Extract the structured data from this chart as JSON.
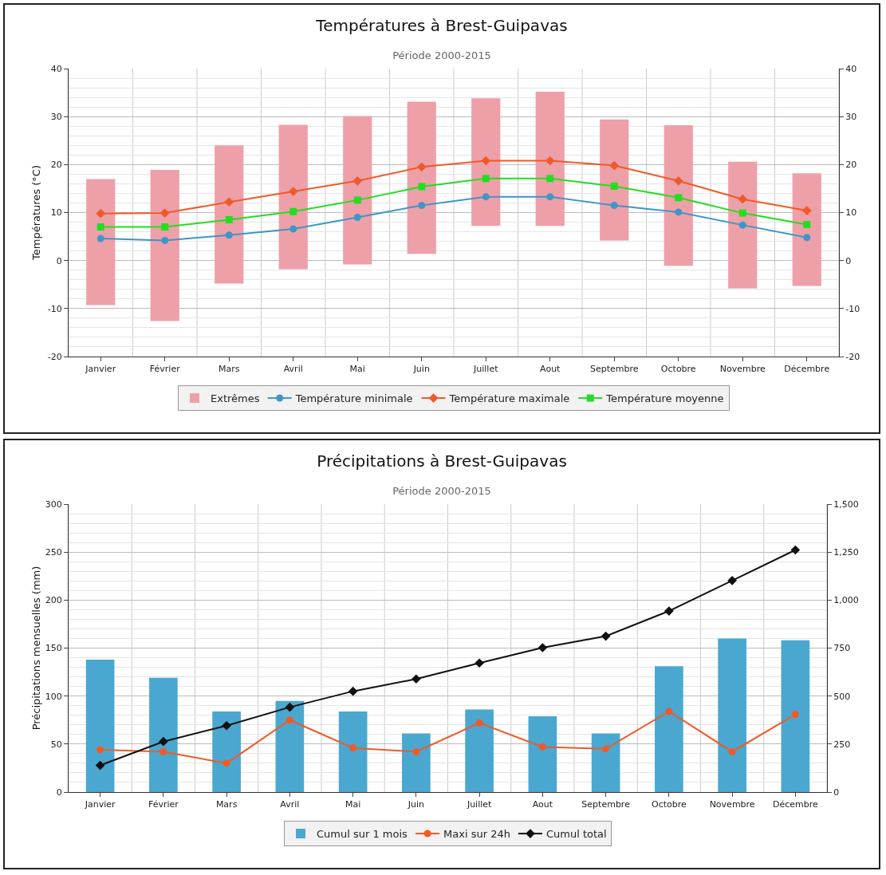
{
  "chart_data": [
    {
      "type": "bar",
      "title": "Températures à Brest-Guipavas",
      "subtitle": "Période 2000-2015",
      "ylabel": "Températures (°C)",
      "categories": [
        "Janvier",
        "Février",
        "Mars",
        "Avril",
        "Mai",
        "Juin",
        "Juillet",
        "Aout",
        "Septembre",
        "Octobre",
        "Novembre",
        "Décembre"
      ],
      "series": [
        {
          "name": "Extrêmes",
          "color": "#eea0a8",
          "values": [
            26.3,
            31.5,
            28.8,
            30.1,
            30.9,
            31.7,
            26.6,
            28.0,
            25.2,
            29.3,
            26.4,
            23.5
          ],
          "base": [
            -9.3,
            -12.6,
            -4.8,
            -1.8,
            -0.8,
            1.4,
            7.2,
            7.2,
            4.2,
            -1.1,
            -5.8,
            -5.3
          ]
        },
        {
          "name": "Température minimale",
          "type": "line",
          "color": "#3d96c8",
          "marker": "circle",
          "values": [
            4.6,
            4.2,
            5.3,
            6.6,
            9.0,
            11.5,
            13.3,
            13.3,
            11.5,
            10.1,
            7.4,
            4.8
          ]
        },
        {
          "name": "Température maximale",
          "type": "line",
          "color": "#f05a28",
          "marker": "diamond",
          "values": [
            9.8,
            9.9,
            12.2,
            14.4,
            16.6,
            19.5,
            20.8,
            20.8,
            19.8,
            16.6,
            12.8,
            10.4
          ]
        },
        {
          "name": "Température moyenne",
          "type": "line",
          "color": "#22dd22",
          "marker": "square",
          "values": [
            7.0,
            7.0,
            8.5,
            10.2,
            12.6,
            15.4,
            17.1,
            17.1,
            15.5,
            13.1,
            9.9,
            7.5
          ]
        }
      ],
      "ylim": [
        -20,
        40
      ],
      "yticks": [
        -20,
        -10,
        0,
        10,
        20,
        30,
        40
      ],
      "y2lim": [
        -20,
        40
      ],
      "y2ticks": [
        -20,
        -10,
        0,
        10,
        20,
        30,
        40
      ],
      "grid": true,
      "legend": "bottom"
    },
    {
      "type": "bar",
      "title": "Précipitations à Brest-Guipavas",
      "subtitle": "Période 2000-2015",
      "ylabel": "Précipitations mensuelles (mm)",
      "categories": [
        "Janvier",
        "Février",
        "Mars",
        "Avril",
        "Mai",
        "Juin",
        "Juillet",
        "Aout",
        "Septembre",
        "Octobre",
        "Novembre",
        "Décembre"
      ],
      "series": [
        {
          "name": "Cumul sur 1 mois",
          "color": "#4aa8d0",
          "values": [
            138,
            119,
            84,
            95,
            84,
            61,
            86,
            79,
            61,
            131,
            160,
            158
          ]
        },
        {
          "name": "Maxi sur 24h",
          "type": "line",
          "color": "#f05a28",
          "marker": "circle",
          "values": [
            44,
            42,
            30,
            75,
            46,
            42,
            72,
            47,
            45,
            84,
            42,
            81
          ]
        },
        {
          "name": "Cumul total",
          "type": "line",
          "axis": "y2",
          "color": "#111111",
          "marker": "diamond",
          "values": [
            139,
            263,
            346,
            442,
            525,
            589,
            672,
            752,
            812,
            943,
            1102,
            1261
          ]
        }
      ],
      "ylim": [
        0,
        300
      ],
      "yticks": [
        0,
        50,
        100,
        150,
        200,
        250,
        300
      ],
      "y2lim": [
        0,
        1500
      ],
      "y2ticks": [
        0,
        250,
        500,
        750,
        {
          "value": 1000,
          "label": "1,000"
        },
        {
          "value": 1250,
          "label": "1,250"
        },
        {
          "value": 1500,
          "label": "1,500"
        }
      ],
      "grid": true,
      "legend": "bottom"
    }
  ]
}
